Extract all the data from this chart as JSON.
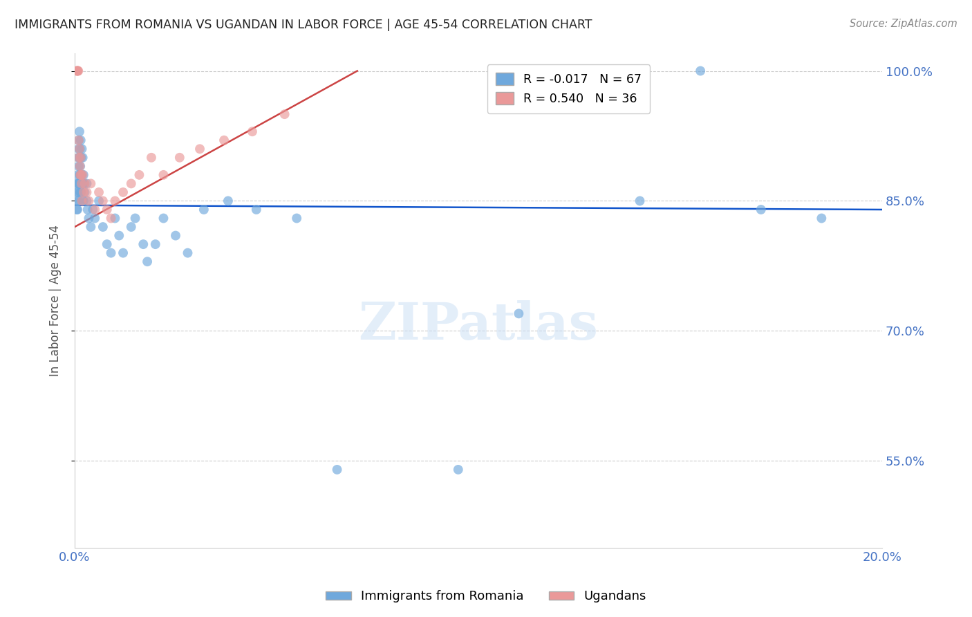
{
  "title": "IMMIGRANTS FROM ROMANIA VS UGANDAN IN LABOR FORCE | AGE 45-54 CORRELATION CHART",
  "source_text": "Source: ZipAtlas.com",
  "ylabel": "In Labor Force | Age 45-54",
  "xlabel": "",
  "xlim": [
    0.0,
    0.2
  ],
  "ylim": [
    0.45,
    1.02
  ],
  "yticks": [
    0.55,
    0.7,
    0.85,
    1.0
  ],
  "ytick_labels": [
    "55.0%",
    "70.0%",
    "85.0%",
    "100.0%"
  ],
  "xticks": [
    0.0,
    0.05,
    0.1,
    0.15,
    0.2
  ],
  "xtick_labels": [
    "0.0%",
    "",
    "",
    "",
    "20.0%"
  ],
  "romania_R": -0.017,
  "romania_N": 67,
  "uganda_R": 0.54,
  "uganda_N": 36,
  "romania_color": "#6fa8dc",
  "uganda_color": "#ea9999",
  "romania_line_color": "#1155cc",
  "uganda_line_color": "#cc4444",
  "watermark": "ZIPatlas",
  "legend_romania_label": "Immigrants from Romania",
  "legend_uganda_label": "Ugandans",
  "romania_x": [
    0.0005,
    0.0005,
    0.0005,
    0.0007,
    0.0007,
    0.0008,
    0.0008,
    0.0009,
    0.0009,
    0.001,
    0.001,
    0.001,
    0.001,
    0.001,
    0.0012,
    0.0012,
    0.0013,
    0.0013,
    0.0014,
    0.0014,
    0.0015,
    0.0015,
    0.0016,
    0.0016,
    0.0017,
    0.0018,
    0.0018,
    0.0019,
    0.002,
    0.002,
    0.0022,
    0.0022,
    0.0024,
    0.0025,
    0.003,
    0.003,
    0.0032,
    0.0035,
    0.004,
    0.0045,
    0.005,
    0.006,
    0.007,
    0.008,
    0.009,
    0.01,
    0.011,
    0.012,
    0.014,
    0.015,
    0.017,
    0.018,
    0.02,
    0.022,
    0.025,
    0.028,
    0.032,
    0.038,
    0.045,
    0.055,
    0.065,
    0.095,
    0.11,
    0.14,
    0.155,
    0.17,
    0.185
  ],
  "romania_y": [
    0.85,
    0.87,
    0.84,
    0.86,
    0.84,
    0.88,
    0.86,
    0.9,
    0.87,
    0.92,
    0.91,
    0.89,
    0.87,
    0.85,
    0.93,
    0.9,
    0.91,
    0.88,
    0.89,
    0.86,
    0.92,
    0.88,
    0.9,
    0.86,
    0.88,
    0.91,
    0.87,
    0.85,
    0.9,
    0.87,
    0.88,
    0.85,
    0.87,
    0.86,
    0.87,
    0.85,
    0.84,
    0.83,
    0.82,
    0.84,
    0.83,
    0.85,
    0.82,
    0.8,
    0.79,
    0.83,
    0.81,
    0.79,
    0.82,
    0.83,
    0.8,
    0.78,
    0.8,
    0.83,
    0.81,
    0.79,
    0.84,
    0.85,
    0.84,
    0.83,
    0.54,
    0.54,
    0.72,
    0.85,
    1.0,
    0.84,
    0.83
  ],
  "uganda_x": [
    0.0005,
    0.0006,
    0.0007,
    0.0008,
    0.0009,
    0.001,
    0.001,
    0.0012,
    0.0013,
    0.0014,
    0.0015,
    0.0016,
    0.0017,
    0.0018,
    0.002,
    0.0022,
    0.0025,
    0.003,
    0.0035,
    0.004,
    0.005,
    0.006,
    0.007,
    0.008,
    0.009,
    0.01,
    0.012,
    0.014,
    0.016,
    0.019,
    0.022,
    0.026,
    0.031,
    0.037,
    0.044,
    0.052
  ],
  "uganda_y": [
    1.0,
    1.0,
    1.0,
    1.0,
    1.0,
    0.92,
    0.9,
    0.91,
    0.89,
    0.88,
    0.9,
    0.88,
    0.87,
    0.85,
    0.88,
    0.86,
    0.87,
    0.86,
    0.85,
    0.87,
    0.84,
    0.86,
    0.85,
    0.84,
    0.83,
    0.85,
    0.86,
    0.87,
    0.88,
    0.9,
    0.88,
    0.9,
    0.91,
    0.92,
    0.93,
    0.95
  ],
  "romania_line_x": [
    0.0,
    0.2
  ],
  "romania_line_y": [
    0.845,
    0.84
  ],
  "uganda_line_x": [
    0.0,
    0.07
  ],
  "uganda_line_y": [
    0.82,
    1.0
  ]
}
